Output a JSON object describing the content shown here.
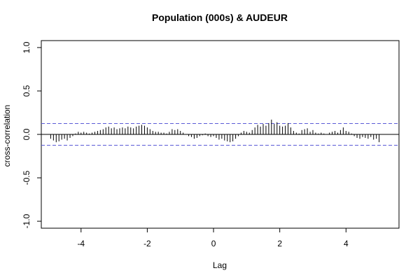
{
  "chart_data": {
    "type": "bar",
    "title": "Population (000s) & AUDEUR",
    "xlabel": "Lag",
    "ylabel": "cross-correlation",
    "xlim": [
      -5.2,
      5.6
    ],
    "ylim": [
      -1.08,
      1.08
    ],
    "xticks": [
      -4,
      -2,
      0,
      2,
      4
    ],
    "xtick_labels": [
      "-4",
      "-2",
      "0",
      "2",
      "4"
    ],
    "yticks": [
      -1.0,
      -0.5,
      0.0,
      0.5,
      1.0
    ],
    "ytick_labels": [
      "-1.0",
      "-0.5",
      "0.0",
      "0.5",
      "1.0"
    ],
    "confidence_band": [
      -0.125,
      0.125
    ],
    "zero_line": 0,
    "colors": {
      "bars": "#000000",
      "band": "#5b5bd6",
      "axes": "#000000"
    },
    "series": [
      {
        "lag": [
          -4.917,
          -4.833,
          -4.75,
          -4.667,
          -4.583,
          -4.5,
          -4.417,
          -4.333,
          -4.25,
          -4.167,
          -4.083,
          -4.0,
          -3.917,
          -3.833,
          -3.75,
          -3.667,
          -3.583,
          -3.5,
          -3.417,
          -3.333,
          -3.25,
          -3.167,
          -3.083,
          -3.0,
          -2.917,
          -2.833,
          -2.75,
          -2.667,
          -2.583,
          -2.5,
          -2.417,
          -2.333,
          -2.25,
          -2.167,
          -2.083,
          -2.0,
          -1.917,
          -1.833,
          -1.75,
          -1.667,
          -1.583,
          -1.5,
          -1.417,
          -1.333,
          -1.25,
          -1.167,
          -1.083,
          -1.0,
          -0.917,
          -0.833,
          -0.75,
          -0.667,
          -0.583,
          -0.5,
          -0.417,
          -0.333,
          -0.25,
          -0.167,
          -0.083,
          0.0,
          0.083,
          0.167,
          0.25,
          0.333,
          0.417,
          0.5,
          0.583,
          0.667,
          0.75,
          0.833,
          0.917,
          1.0,
          1.083,
          1.167,
          1.25,
          1.333,
          1.417,
          1.5,
          1.583,
          1.667,
          1.75,
          1.833,
          1.917,
          2.0,
          2.083,
          2.167,
          2.25,
          2.333,
          2.417,
          2.5,
          2.583,
          2.667,
          2.75,
          2.833,
          2.917,
          3.0,
          3.083,
          3.167,
          3.25,
          3.333,
          3.417,
          3.5,
          3.583,
          3.667,
          3.75,
          3.833,
          3.917,
          4.0,
          4.083,
          4.167,
          4.25,
          4.333,
          4.417,
          4.5,
          4.583,
          4.667,
          4.75,
          4.833,
          4.917,
          5.0
        ],
        "values": [
          -0.05,
          -0.07,
          -0.09,
          -0.08,
          -0.06,
          -0.05,
          -0.07,
          -0.04,
          -0.02,
          0.01,
          0.03,
          0.02,
          0.03,
          0.02,
          0.01,
          0.02,
          0.03,
          0.04,
          0.05,
          0.06,
          0.08,
          0.09,
          0.07,
          0.08,
          0.06,
          0.07,
          0.08,
          0.07,
          0.09,
          0.08,
          0.07,
          0.09,
          0.1,
          0.11,
          0.1,
          0.08,
          0.06,
          0.04,
          0.03,
          0.03,
          0.02,
          0.02,
          0.01,
          0.03,
          0.06,
          0.05,
          0.06,
          0.04,
          0.02,
          0.0,
          -0.02,
          -0.03,
          -0.05,
          -0.04,
          -0.02,
          -0.01,
          0.01,
          -0.02,
          -0.03,
          -0.02,
          -0.04,
          -0.06,
          -0.05,
          -0.07,
          -0.08,
          -0.09,
          -0.08,
          -0.05,
          -0.02,
          0.02,
          0.04,
          0.03,
          0.02,
          0.05,
          0.08,
          0.11,
          0.09,
          0.12,
          0.1,
          0.13,
          0.17,
          0.12,
          0.14,
          0.1,
          0.09,
          0.1,
          0.13,
          0.08,
          0.04,
          0.02,
          0.01,
          0.05,
          0.06,
          0.07,
          0.03,
          0.05,
          0.02,
          0.01,
          0.02,
          0.01,
          0.0,
          0.02,
          0.03,
          0.04,
          0.02,
          0.05,
          0.08,
          0.04,
          0.03,
          0.01,
          -0.02,
          -0.04,
          -0.05,
          -0.03,
          -0.04,
          -0.05,
          -0.03,
          -0.06,
          -0.05,
          -0.09
        ]
      }
    ]
  }
}
